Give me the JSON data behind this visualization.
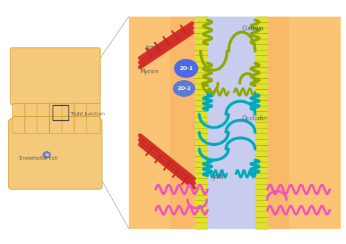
{
  "bg_color": "#ffffff",
  "cell_color": "#F5C97A",
  "cell_border_color": "#D4A030",
  "pink_band_color": "#F4A8A0",
  "membrane_color": "#E0E030",
  "intercell_space_color": "#C8CCEE",
  "actin_color": "#CC2222",
  "zo1_color": "#4466EE",
  "zo2_color": "#5577DD",
  "claudin_color": "#8FA800",
  "occludin_color": "#00AABB",
  "jam_color": "#EE55BB",
  "label_color": "#555555",
  "orange_bg": "#F5B84A",
  "labels": {
    "tight_junction": "Tight Junction",
    "endothelial_cell": "Endothelial cell",
    "actin": "Actin",
    "myosin": "Myosin",
    "zo1": "ZO-1",
    "zo2": "ZO-2",
    "claudin": "Claudin",
    "occludin": "Occludin",
    "jam": "JAM"
  }
}
